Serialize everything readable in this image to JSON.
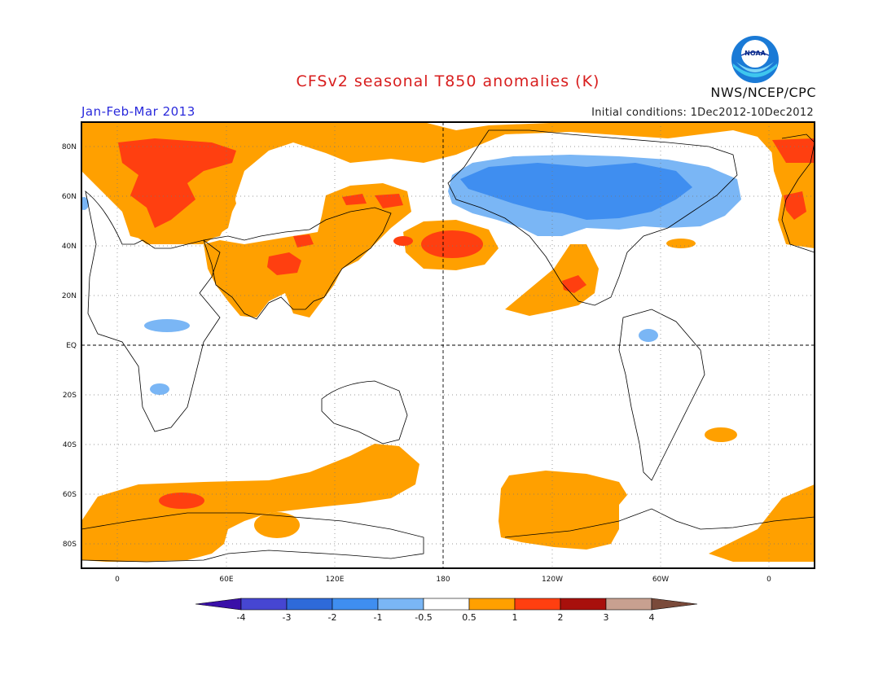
{
  "title": "CFSv2 seasonal T850 anomalies (K)",
  "period": "Jan-Feb-Mar 2013",
  "initial_conditions": "Initial conditions: 1Dec2012-10Dec2012",
  "agency": "NWS/NCEP/CPC",
  "logo_text": "NOAA",
  "lat_labels": [
    "80N",
    "60N",
    "40N",
    "20N",
    "EQ",
    "20S",
    "40S",
    "60S",
    "80S"
  ],
  "lon_labels": [
    "0",
    "60E",
    "120E",
    "180",
    "120W",
    "60W",
    "0"
  ],
  "colorbar": {
    "tick_labels": [
      "-4",
      "-3",
      "-2",
      "-1",
      "-0.5",
      "0.5",
      "1",
      "2",
      "3",
      "4"
    ],
    "colors": [
      "#3a10a8",
      "#4646d2",
      "#2e6ad9",
      "#3f8ef0",
      "#7ab6f5",
      "#ffffff",
      "#ffa000",
      "#ff3f10",
      "#a8100c",
      "#c8a090",
      "#7a4a3a"
    ]
  }
}
